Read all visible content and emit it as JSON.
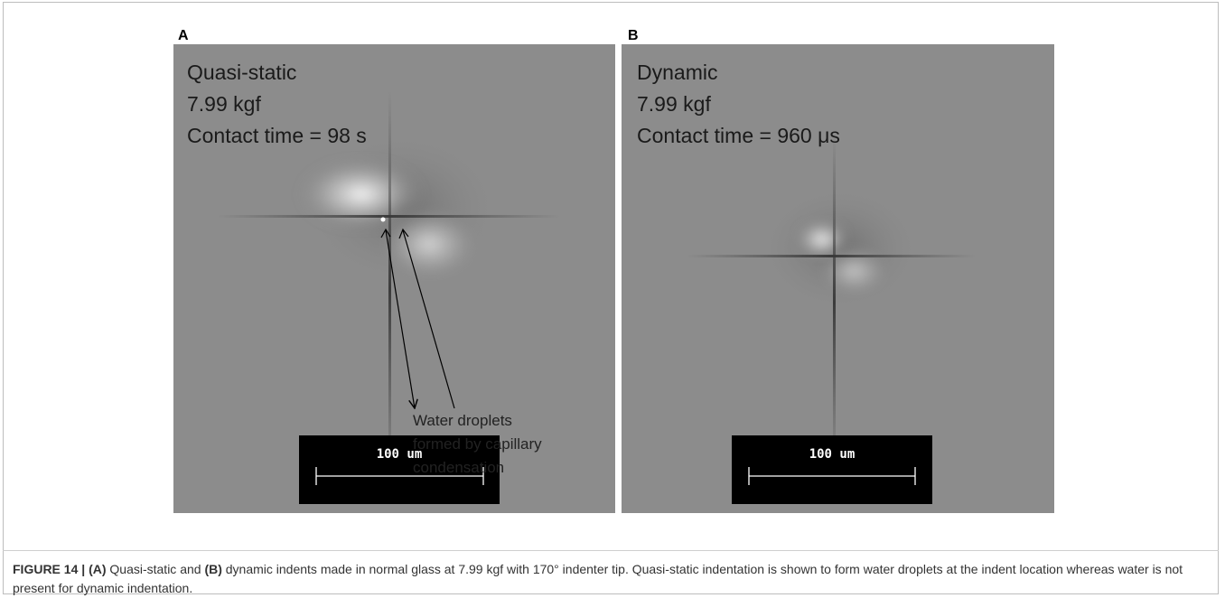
{
  "panels": [
    {
      "label": "A",
      "lines": [
        "Quasi-static",
        "7.99 kgf",
        "Contact time = 98 s"
      ],
      "annotation": [
        "Water droplets",
        "formed by capillary",
        "condensation"
      ],
      "scale_bar": "100 um"
    },
    {
      "label": "B",
      "lines": [
        "Dynamic",
        "7.99 kgf",
        "Contact time = 960 μs"
      ],
      "scale_bar": "100 um"
    }
  ],
  "caption": [
    {
      "text": "FIGURE 14 | ",
      "bold": true
    },
    {
      "text": "(A)",
      "bold": true
    },
    {
      "text": " Quasi-static and ",
      "bold": false
    },
    {
      "text": "(B)",
      "bold": true
    },
    {
      "text": " dynamic indents made in normal glass at 7.99 kgf with 170° indenter tip. Quasi-static indentation is shown to form water droplets at the indent location whereas water is not present for dynamic indentation.",
      "bold": false
    }
  ]
}
